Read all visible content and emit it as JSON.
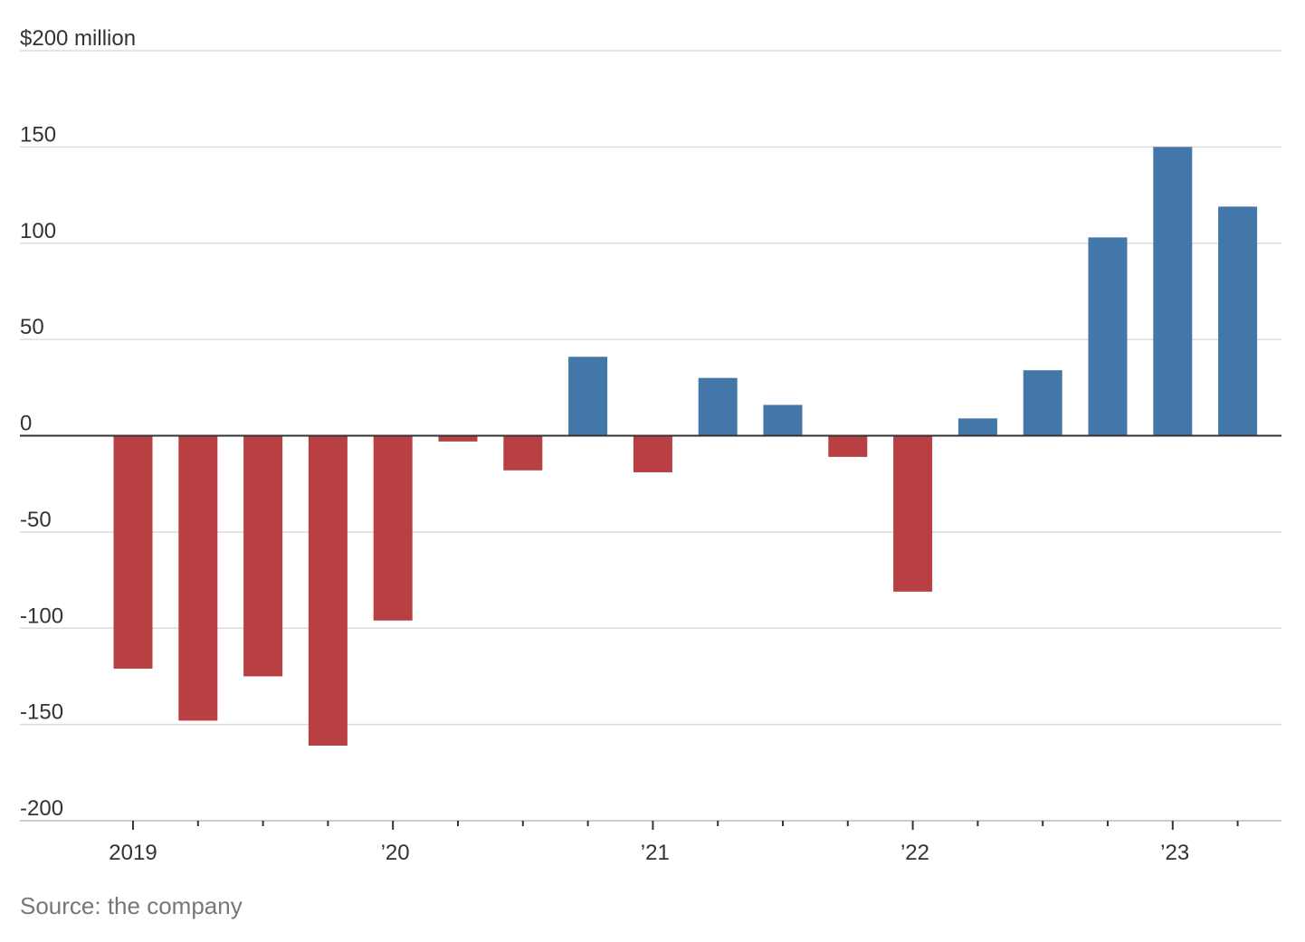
{
  "chart_data": {
    "type": "bar",
    "title": "",
    "ylabel": "",
    "y_unit_label": "$200 million",
    "ylim": [
      -200,
      200
    ],
    "y_ticks": [
      {
        "value": 200,
        "label": "$200 million"
      },
      {
        "value": 150,
        "label": "150"
      },
      {
        "value": 100,
        "label": "100"
      },
      {
        "value": 50,
        "label": "50"
      },
      {
        "value": 0,
        "label": "0"
      },
      {
        "value": -50,
        "label": "-50"
      },
      {
        "value": -100,
        "label": "-100"
      },
      {
        "value": -150,
        "label": "-150"
      },
      {
        "value": -200,
        "label": "-200"
      }
    ],
    "x_tick_labels": [
      {
        "index": 0,
        "label": "2019"
      },
      {
        "index": 4,
        "label": " ’20"
      },
      {
        "index": 8,
        "label": " ’21"
      },
      {
        "index": 12,
        "label": " ’22"
      },
      {
        "index": 16,
        "label": " ’23"
      }
    ],
    "categories": [
      "2019 Q1",
      "2019 Q2",
      "2019 Q3",
      "2019 Q4",
      "2020 Q1",
      "2020 Q2",
      "2020 Q3",
      "2020 Q4",
      "2021 Q1",
      "2021 Q2",
      "2021 Q3",
      "2021 Q4",
      "2022 Q1",
      "2022 Q2",
      "2022 Q3",
      "2022 Q4",
      "2023 Q1",
      "2023 Q2"
    ],
    "values": [
      -121,
      -148,
      -125,
      -161,
      -96,
      -3,
      -18,
      41,
      -19,
      30,
      16,
      -11,
      -81,
      9,
      34,
      103,
      150,
      119
    ],
    "colors": {
      "positive": "#4477a9",
      "negative": "#b84042"
    },
    "grid": true
  },
  "source": "Source: the company"
}
